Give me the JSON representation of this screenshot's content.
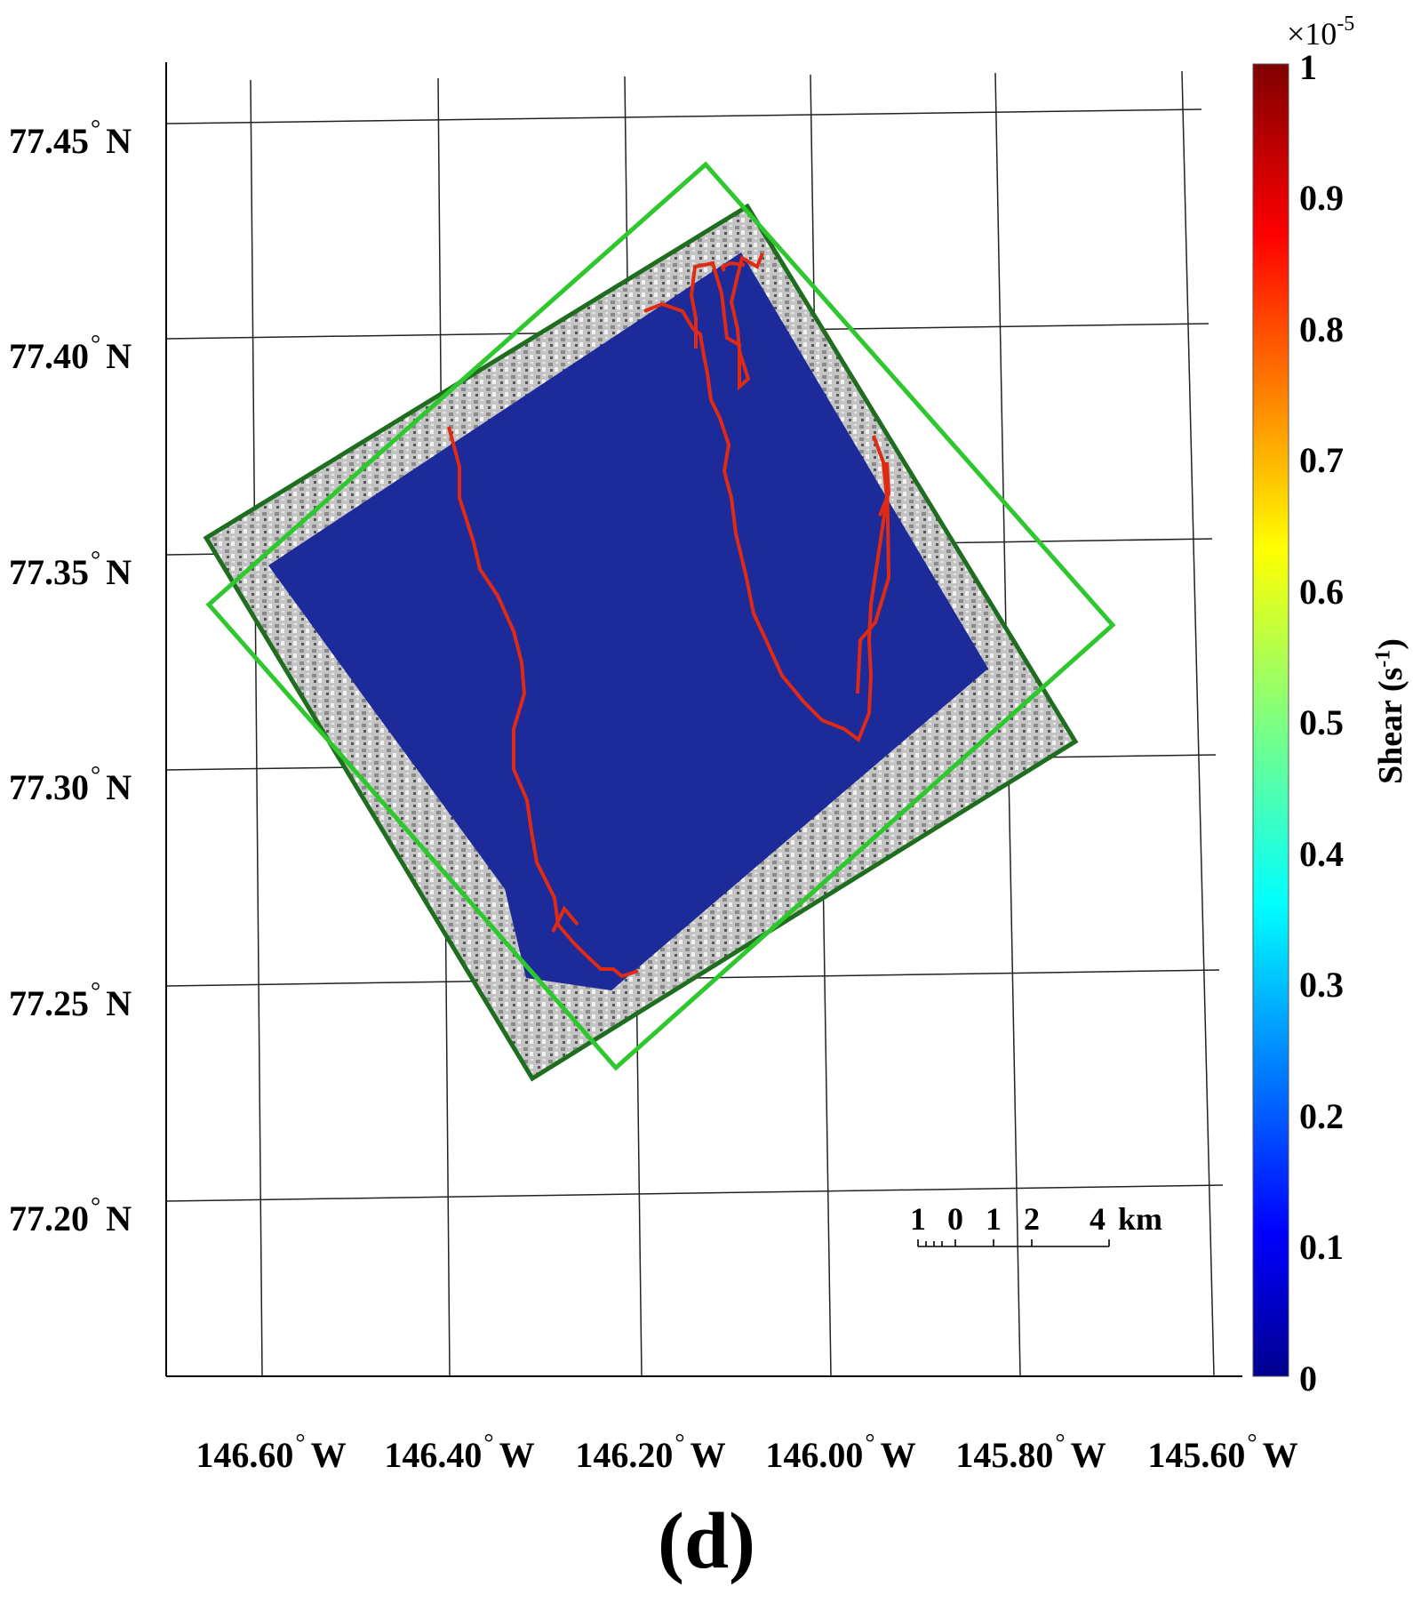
{
  "map": {
    "latitude_labels": [
      "77.45",
      "77.40",
      "77.35",
      "77.30",
      "77.25",
      "77.20"
    ],
    "latitude_suffix": "N",
    "longitude_labels": [
      "146.60",
      "146.40",
      "146.20",
      "146.00",
      "145.80",
      "145.60"
    ],
    "longitude_suffix": "W",
    "degree_symbol": "°",
    "panel_label": "(d)"
  },
  "colorbar": {
    "title": "Shear (s",
    "title_sup": "-1",
    "title_end": ")",
    "multiplier": "×10",
    "multiplier_exp": "-5",
    "ticks": [
      "1",
      "0.9",
      "0.8",
      "0.7",
      "0.6",
      "0.5",
      "0.4",
      "0.3",
      "0.2",
      "0.1",
      "0"
    ],
    "colormap": [
      "#7f0000",
      "#ff0000",
      "#ff7f00",
      "#ffff00",
      "#7fff7f",
      "#00ffff",
      "#007fff",
      "#0000ff",
      "#00008f"
    ]
  },
  "scale_bar": {
    "labels": [
      "1",
      "0",
      "1",
      "2",
      "4"
    ],
    "unit": "km"
  },
  "colors": {
    "field": "#1c2a9a",
    "ice_margin": "#b8b8b8",
    "dark_frame": "#1f6e1f",
    "light_frame": "#2ec82e",
    "shear_lines": "#e02a14",
    "grid": "#222222"
  }
}
